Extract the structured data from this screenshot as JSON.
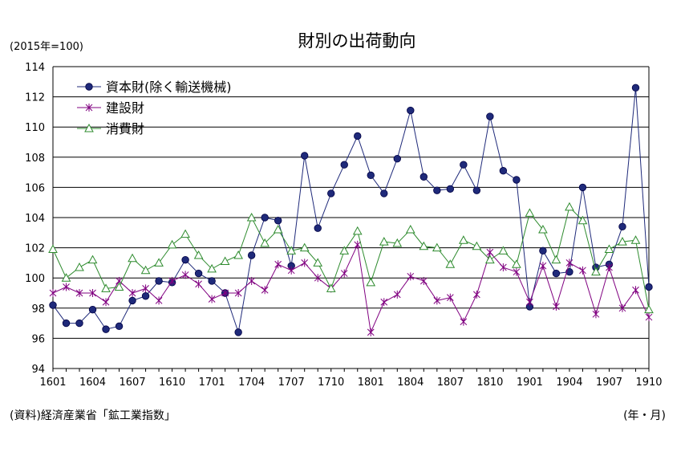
{
  "chart_data": {
    "type": "line",
    "title": "財別の出荷動向",
    "ylabel": "(2015年=100)",
    "xlabel": "(年・月)",
    "source": "(資料)経済産業省「鉱工業指数」",
    "ylim": [
      94,
      114
    ],
    "yticks": [
      94,
      96,
      98,
      100,
      102,
      104,
      106,
      108,
      110,
      112,
      114
    ],
    "xtick_labels": [
      "1601",
      "1604",
      "1607",
      "1610",
      "1701",
      "1704",
      "1707",
      "1710",
      "1801",
      "1804",
      "1807",
      "1810",
      "1901",
      "1904",
      "1907",
      "1910"
    ],
    "x": [
      "1601",
      "1602",
      "1603",
      "1604",
      "1605",
      "1606",
      "1607",
      "1608",
      "1609",
      "1610",
      "1611",
      "1612",
      "1701",
      "1702",
      "1703",
      "1704",
      "1705",
      "1706",
      "1707",
      "1708",
      "1709",
      "1710",
      "1711",
      "1712",
      "1801",
      "1802",
      "1803",
      "1804",
      "1805",
      "1806",
      "1807",
      "1808",
      "1809",
      "1810",
      "1811",
      "1812",
      "1901",
      "1902",
      "1903",
      "1904",
      "1905",
      "1906",
      "1907",
      "1908",
      "1909",
      "1910"
    ],
    "grid": "horizontal",
    "legend_position": "top-left",
    "series": [
      {
        "name": "資本財(除く輸送機械)",
        "color": "#1f2a7a",
        "marker": "circle",
        "values": [
          98.2,
          97.0,
          97.0,
          97.9,
          96.6,
          96.8,
          98.5,
          98.8,
          99.8,
          99.7,
          101.2,
          100.3,
          99.8,
          99.0,
          96.4,
          101.5,
          104.0,
          103.8,
          100.8,
          108.1,
          103.3,
          105.6,
          107.5,
          109.4,
          106.8,
          105.6,
          107.9,
          111.1,
          106.7,
          105.8,
          105.9,
          107.5,
          105.8,
          110.7,
          107.1,
          106.5,
          98.1,
          101.8,
          100.3,
          100.4,
          106.0,
          100.7,
          100.9,
          103.4,
          112.6,
          99.4
        ]
      },
      {
        "name": "建設財",
        "color": "#800080",
        "marker": "star",
        "values": [
          99.0,
          99.4,
          99.0,
          99.0,
          98.4,
          99.8,
          99.0,
          99.3,
          98.5,
          99.8,
          100.2,
          99.6,
          98.6,
          99.0,
          99.0,
          99.8,
          99.2,
          100.9,
          100.5,
          101.0,
          100.0,
          99.3,
          100.3,
          102.2,
          96.4,
          98.4,
          98.9,
          100.1,
          99.8,
          98.5,
          98.7,
          97.1,
          98.9,
          101.7,
          100.7,
          100.4,
          98.4,
          100.8,
          98.1,
          101.0,
          100.5,
          97.6,
          100.7,
          98.0,
          99.2,
          97.4
        ]
      },
      {
        "name": "消費財",
        "color": "#2e8b2e",
        "marker": "triangle",
        "values": [
          101.9,
          100.0,
          100.7,
          101.2,
          99.3,
          99.4,
          101.3,
          100.5,
          101.0,
          102.2,
          102.9,
          101.5,
          100.6,
          101.1,
          101.5,
          104.0,
          102.3,
          103.2,
          101.8,
          102.0,
          101.0,
          99.3,
          101.8,
          103.1,
          99.7,
          102.4,
          102.3,
          103.2,
          102.1,
          102.0,
          100.9,
          102.5,
          102.1,
          101.2,
          101.8,
          100.9,
          104.3,
          103.2,
          101.2,
          104.7,
          103.8,
          100.4,
          101.9,
          102.4,
          102.5,
          97.9
        ]
      }
    ]
  }
}
